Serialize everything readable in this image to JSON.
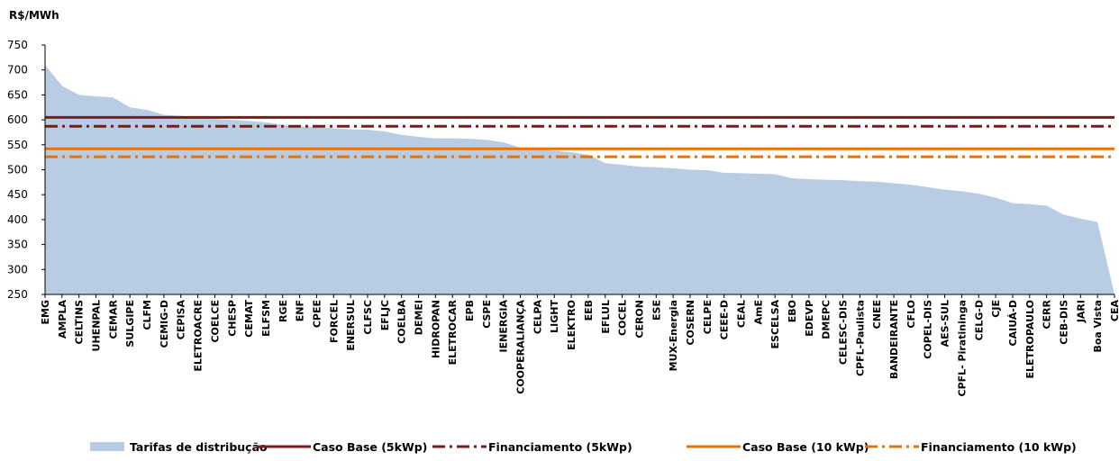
{
  "chart_data": {
    "type": "area",
    "ylabel": "R$/MWh",
    "ylim": [
      250,
      750
    ],
    "yticks": [
      "250",
      "300",
      "350",
      "400",
      "450",
      "500",
      "550",
      "600",
      "650",
      "700",
      "750"
    ],
    "grid": false,
    "legend_position": "bottom",
    "categories": [
      "EMG",
      "AMPLA",
      "CELTINS",
      "UHENPAL",
      "CEMAR",
      "SULGIPE",
      "CLFM",
      "CEMIG-D",
      "CEPISA",
      "ELETROACRE",
      "COELCE",
      "CHESP",
      "CEMAT",
      "ELFSM",
      "RGE",
      "ENF",
      "CPEE",
      "FORCEL",
      "ENERSUL",
      "CLFSC",
      "EFLJC",
      "COELBA",
      "DEMEI",
      "HIDROPAN",
      "ELETROCAR",
      "EPB",
      "CSPE",
      "IENERGIA",
      "COOPERALIANÇA",
      "CELPA",
      "LIGHT",
      "ELEKTRO",
      "EEB",
      "EFLUL",
      "COCEL",
      "CERON",
      "ESE",
      "MUX-Energia",
      "COSERN",
      "CELPE",
      "CEEE-D",
      "CEAL",
      "AmE",
      "ESCELSA",
      "EBO",
      "EDEVP",
      "DMEPC",
      "CELESC-DIS",
      "CPFL-Paulista",
      "CNEE",
      "BANDEIRANTE",
      "CFLO",
      "COPEL-DIS",
      "AES-SUL",
      "CPFL- Piratininga",
      "CELG-D",
      "CJE",
      "CAIUÁ-D",
      "ELETROPAULO",
      "CERR",
      "CEB-DIS",
      "JARI",
      "Boa Vista",
      "CEA"
    ],
    "series": [
      {
        "name": "Tarifas de distribução",
        "kind": "area",
        "color": "#b8cce4",
        "values": [
          710,
          668,
          650,
          647,
          645,
          625,
          620,
          610,
          608,
          605,
          602,
          600,
          598,
          595,
          590,
          587,
          585,
          583,
          581,
          580,
          577,
          570,
          566,
          563,
          563,
          562,
          560,
          555,
          544,
          542,
          538,
          535,
          530,
          513,
          510,
          506,
          505,
          503,
          500,
          499,
          494,
          493,
          492,
          491,
          483,
          481,
          480,
          479,
          477,
          476,
          473,
          470,
          465,
          460,
          457,
          452,
          444,
          433,
          431,
          428,
          410,
          402,
          395,
          250
        ]
      },
      {
        "name": "Caso Base (5kWp)",
        "kind": "hline",
        "value": 605,
        "color": "#7f1a1a",
        "dash": "solid"
      },
      {
        "name": "Financiamento (5kWp)",
        "kind": "hline",
        "value": 587,
        "color": "#7f1a1a",
        "dash": "dashdot"
      },
      {
        "name": "Caso Base (10 kWp)",
        "kind": "hline",
        "value": 542,
        "color": "#e2730f",
        "dash": "solid"
      },
      {
        "name": "Financiamento (10 kWp)",
        "kind": "hline",
        "value": 526,
        "color": "#e2730f",
        "dash": "dashdot"
      }
    ]
  }
}
